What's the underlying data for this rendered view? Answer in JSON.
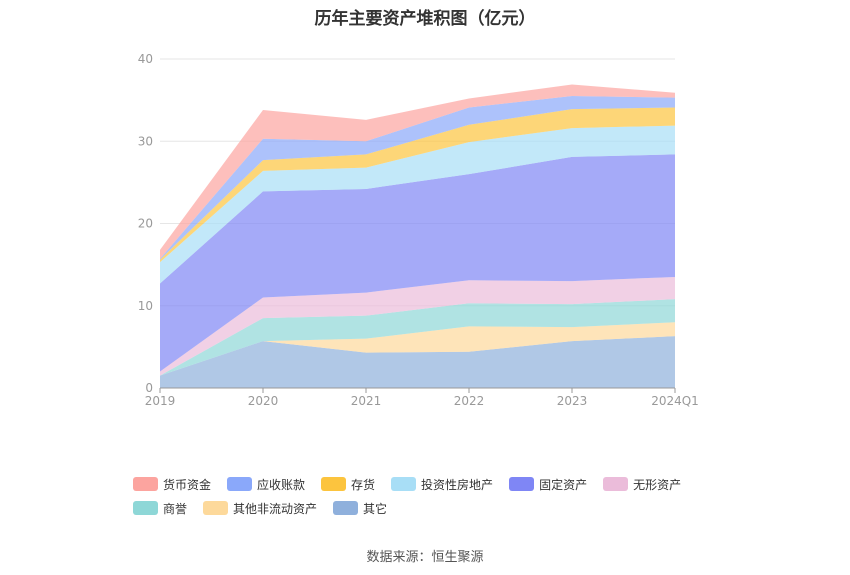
{
  "title": "历年主要资产堆积图（亿元）",
  "source": "数据来源：恒生聚源",
  "chart_data": {
    "type": "area",
    "stacked": true,
    "categories": [
      "2019",
      "2020",
      "2021",
      "2022",
      "2023",
      "2024Q1"
    ],
    "ylim": [
      0,
      40
    ],
    "yticks": [
      0,
      10,
      20,
      30,
      40
    ],
    "grid": true,
    "legend_position": "bottom",
    "series": [
      {
        "name": "其它",
        "color": "#8fb0dc",
        "values": [
          1.5,
          5.7,
          4.3,
          4.4,
          5.7,
          6.3
        ]
      },
      {
        "name": "其他非流动资产",
        "color": "#fdd99b",
        "values": [
          0.0,
          0.0,
          1.7,
          3.1,
          1.7,
          1.7
        ]
      },
      {
        "name": "商誉",
        "color": "#8ed7d7",
        "values": [
          0.0,
          2.8,
          2.8,
          2.8,
          2.8,
          2.8
        ]
      },
      {
        "name": "无形资产",
        "color": "#ebbcda",
        "values": [
          0.5,
          2.5,
          2.8,
          2.8,
          2.8,
          2.7
        ]
      },
      {
        "name": "固定资产",
        "color": "#7f86f5",
        "values": [
          10.7,
          12.9,
          12.6,
          12.9,
          15.1,
          14.9
        ]
      },
      {
        "name": "投资性房地产",
        "color": "#a8def6",
        "values": [
          2.6,
          2.5,
          2.6,
          3.9,
          3.5,
          3.5
        ]
      },
      {
        "name": "存货",
        "color": "#fcc43e",
        "values": [
          0.3,
          1.3,
          1.6,
          2.1,
          2.3,
          2.2
        ]
      },
      {
        "name": "应收账款",
        "color": "#8aa8fa",
        "values": [
          0.1,
          2.6,
          1.6,
          2.1,
          1.6,
          1.2
        ]
      },
      {
        "name": "货币资金",
        "color": "#fca49f",
        "values": [
          1.1,
          3.5,
          2.6,
          1.1,
          1.4,
          0.6
        ]
      }
    ]
  },
  "legend_order": [
    {
      "name": "货币资金",
      "color": "#fca49f"
    },
    {
      "name": "应收账款",
      "color": "#8aa8fa"
    },
    {
      "name": "存货",
      "color": "#fcc43e"
    },
    {
      "name": "投资性房地产",
      "color": "#a8def6"
    },
    {
      "name": "固定资产",
      "color": "#7f86f5"
    },
    {
      "name": "无形资产",
      "color": "#ebbcda"
    },
    {
      "name": "商誉",
      "color": "#8ed7d7"
    },
    {
      "name": "其他非流动资产",
      "color": "#fdd99b"
    },
    {
      "name": "其它",
      "color": "#8fb0dc"
    }
  ]
}
